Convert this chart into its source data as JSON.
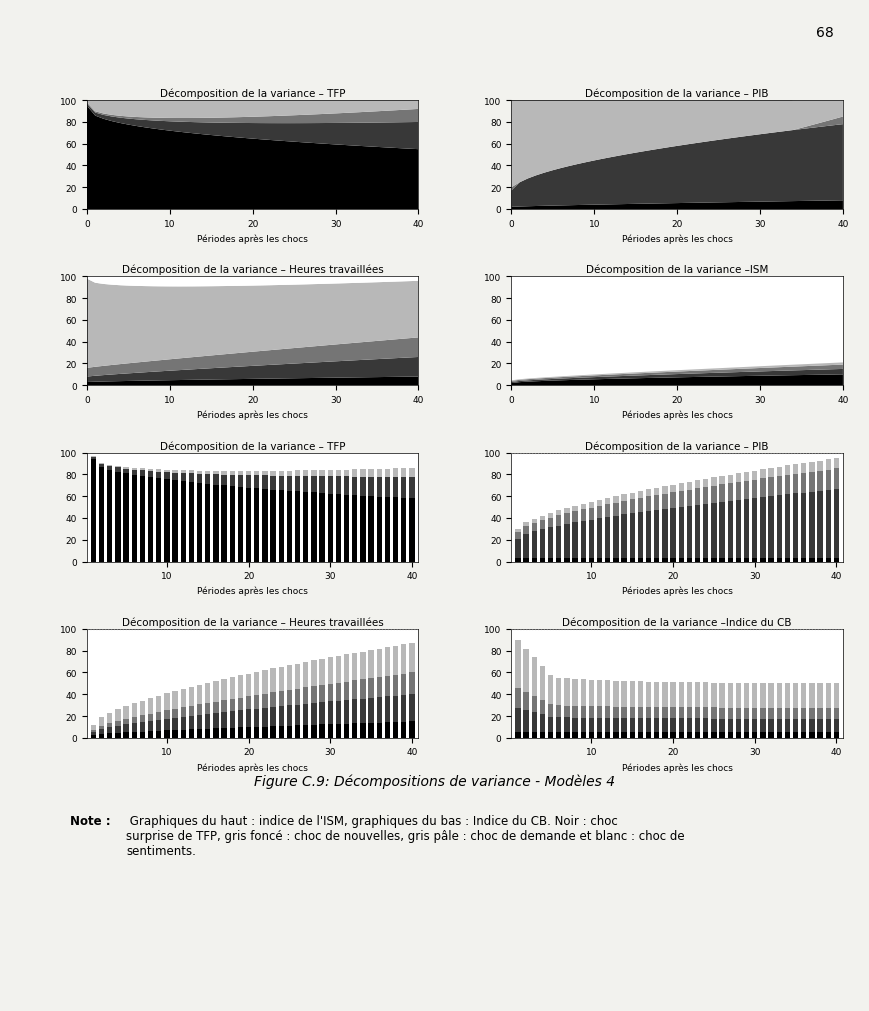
{
  "figure_caption": "Figure C.9: Décompositions de variance - Modèles 4",
  "note_bold": "Note :",
  "note_rest": " Graphiques du haut : indice de l'ISM, graphiques du bas : Indice du CB. Noir : choc\nsurprise de TFP, gris foncé : choc de nouvelles, gris pâle : choc de demande et blanc : choc de\nsentiments.",
  "colors": {
    "black": "#000000",
    "dark_gray": "#383838",
    "medium_gray": "#757575",
    "light_gray": "#B8B8B8",
    "white": "#FFFFFF"
  },
  "page_number": "68",
  "titles": [
    [
      "Décomposition de la variance – TFP",
      "Décomposition de la variance – PIB"
    ],
    [
      "Décomposition de la variance – Heures travaillées",
      "Décomposition de la variance –ISM"
    ],
    [
      "Décomposition de la variance – TFP",
      "Décomposition de la variance – PIB"
    ],
    [
      "Décomposition de la variance – Heures travaillées",
      "Décomposition de la variance –Indice du CB"
    ]
  ],
  "xlabel": "Périodes après les chocs",
  "bg_color": "#F2F2EE"
}
